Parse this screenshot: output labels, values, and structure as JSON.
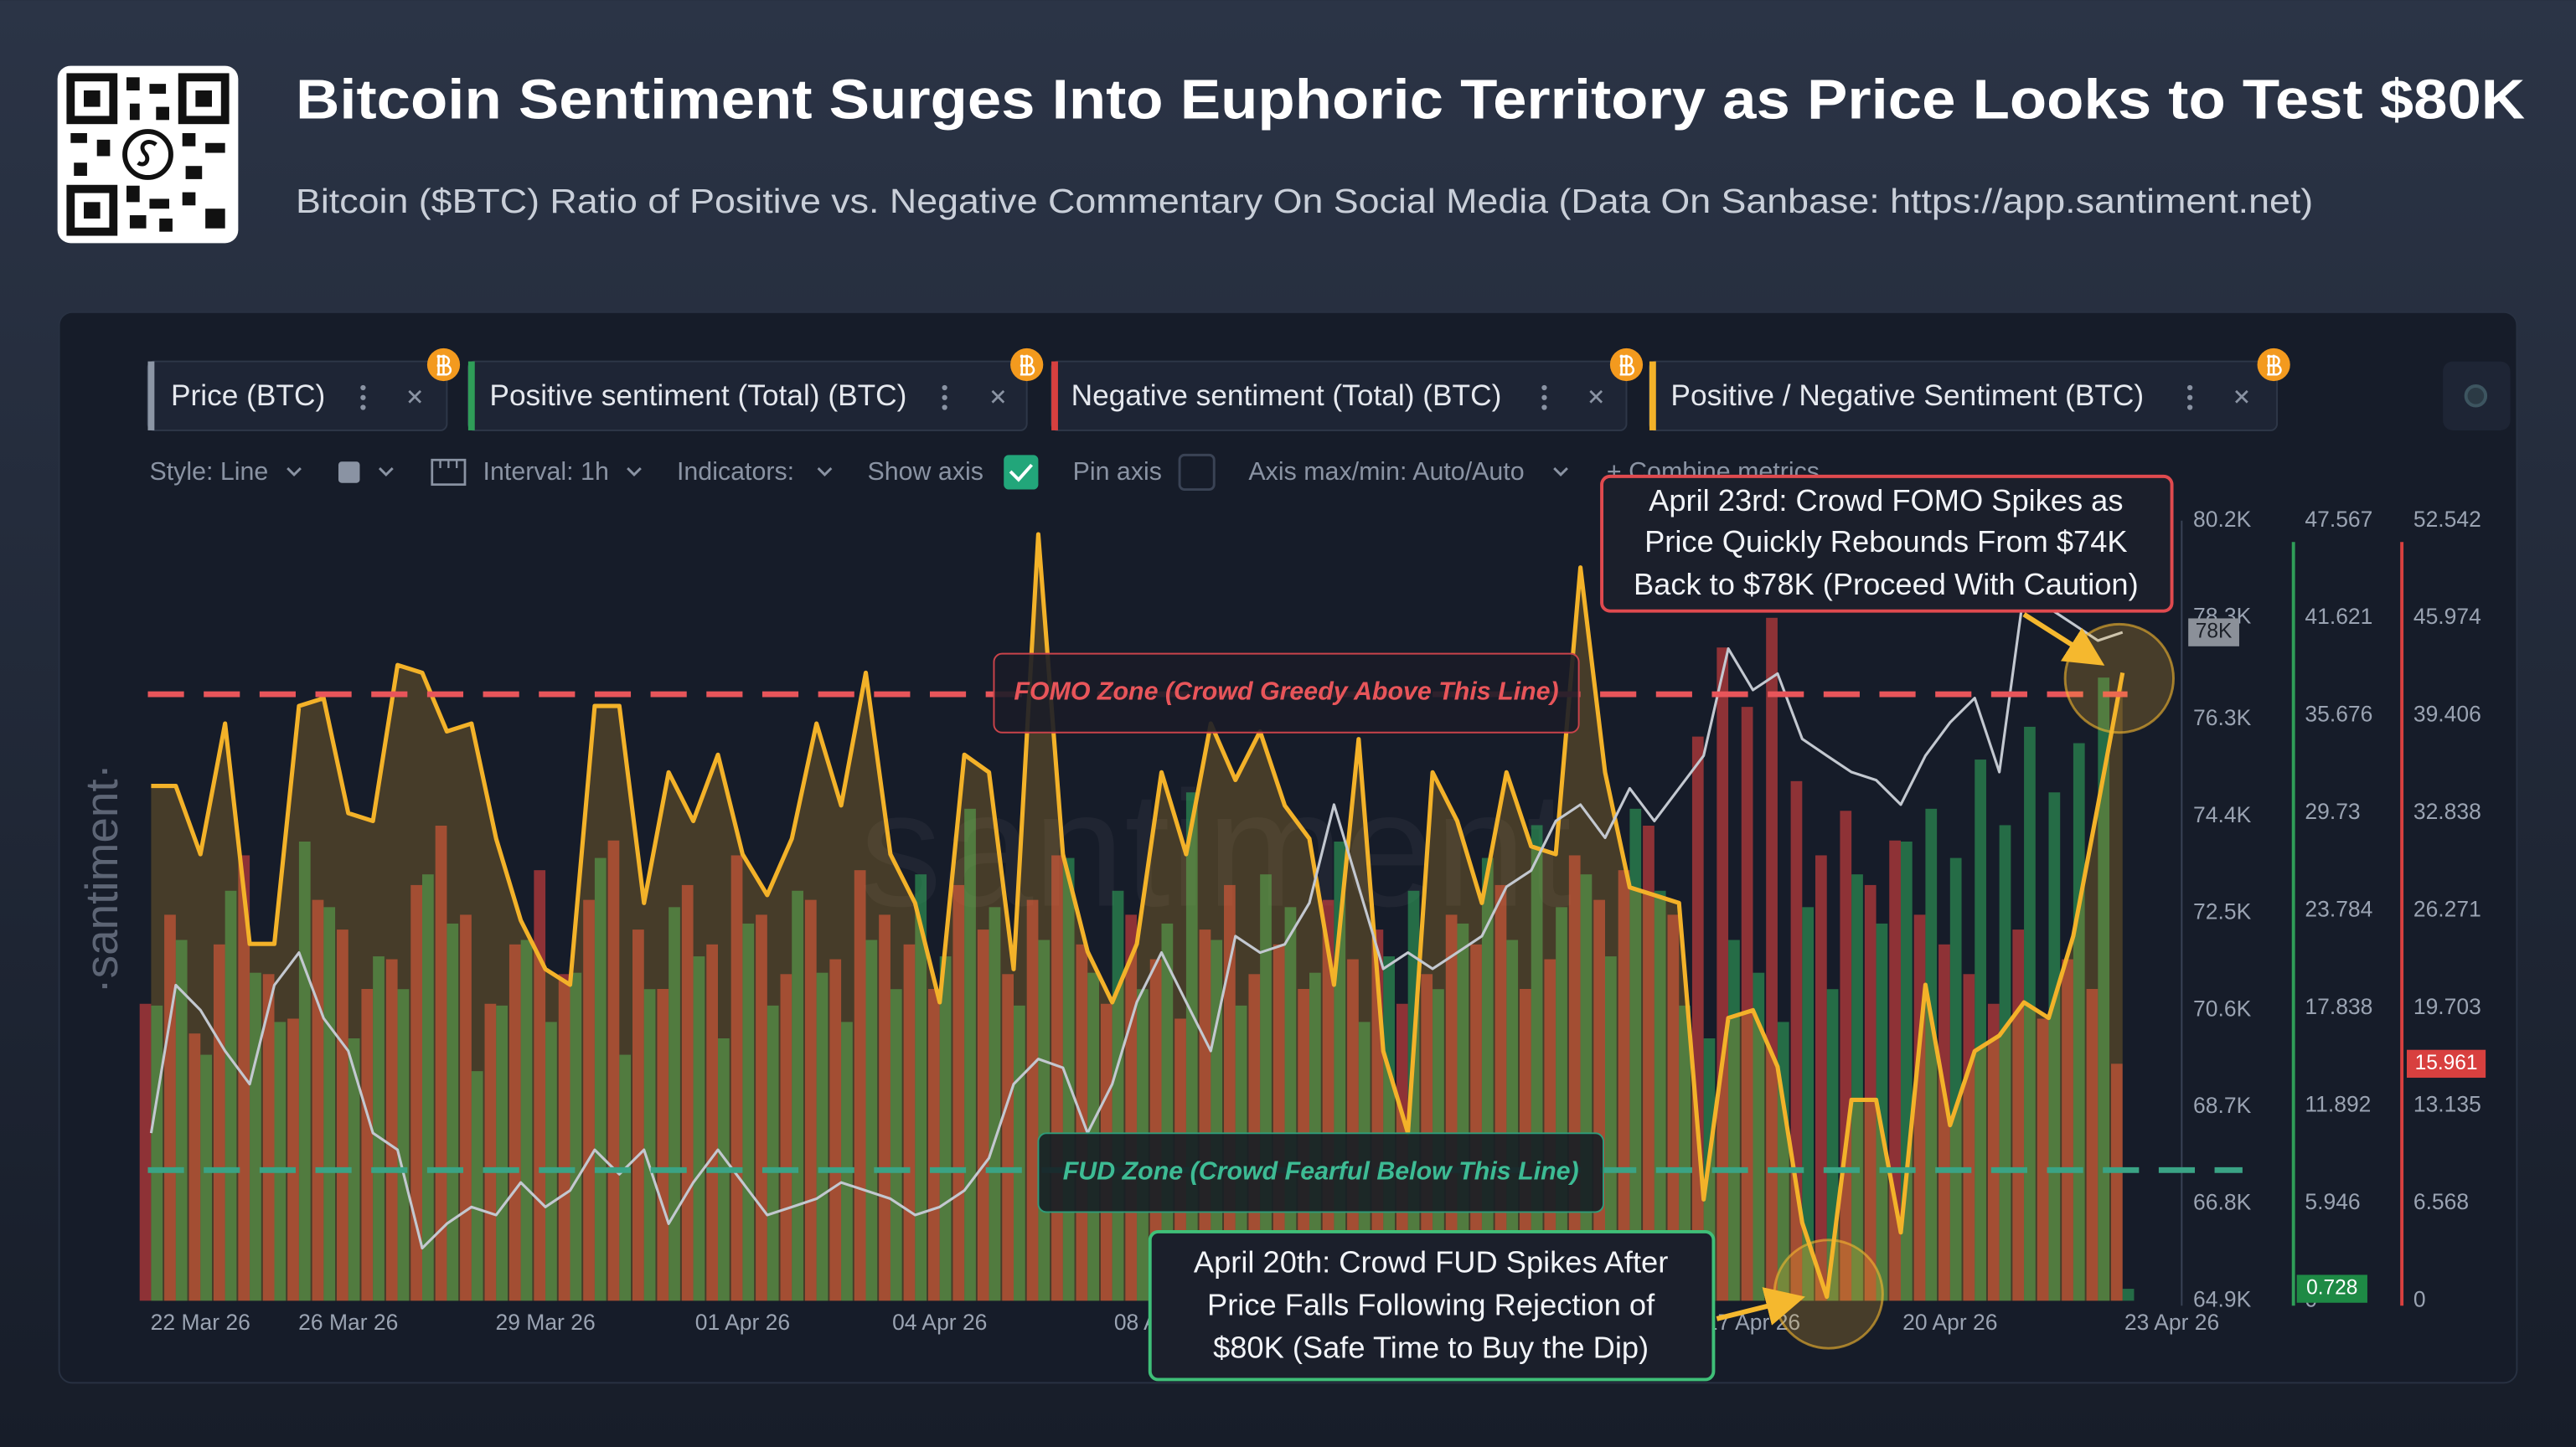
{
  "header": {
    "title": "Bitcoin Sentiment Surges Into Euphoric Territory as Price Looks to Test $80K",
    "subtitle": "Bitcoin ($BTC) Ratio of Positive vs. Negative Commentary On Social Media (Data On Sanbase: https://app.santiment.net)"
  },
  "toolbar": {
    "controls": [
      "Style: Line",
      "Interval: 1h",
      "Indicators:",
      "Show axis",
      "Pin axis",
      "Axis max/min: Auto/Auto",
      "+ Combine metrics"
    ]
  },
  "watermark": {
    "side": "·santiment·",
    "center": "santiment"
  },
  "chart_data": {
    "type": "combo",
    "xlim": [
      0,
      82
    ],
    "xticks": [
      {
        "value": 2,
        "label": "22 Mar 26"
      },
      {
        "value": 8,
        "label": "26 Mar 26"
      },
      {
        "value": 16,
        "label": "29 Mar 26"
      },
      {
        "value": 24,
        "label": "01 Apr 26"
      },
      {
        "value": 32,
        "label": "04 Apr 26"
      },
      {
        "value": 41,
        "label": "08 Apr 26"
      },
      {
        "value": 65,
        "label": "17 Apr 26"
      },
      {
        "value": 73,
        "label": "20 Apr 26"
      },
      {
        "value": 82,
        "label": "23 Apr 26"
      }
    ],
    "ylim": [
      64900,
      80200
    ],
    "yticks": [
      {
        "value": 64900,
        "label": "64.9K"
      },
      {
        "value": 66800,
        "label": "66.8K"
      },
      {
        "value": 68700,
        "label": "68.7K"
      },
      {
        "value": 70600,
        "label": "70.6K"
      },
      {
        "value": 72500,
        "label": "72.5K"
      },
      {
        "value": 74400,
        "label": "74.4K"
      },
      {
        "value": 76300,
        "label": "76.3K"
      },
      {
        "value": 78300,
        "label": "78.3K"
      },
      {
        "value": 80200,
        "label": "80.2K"
      }
    ],
    "y2lim": [
      0,
      47.567
    ],
    "y2ticks": [
      0,
      5.946,
      11.892,
      17.838,
      23.784,
      29.73,
      35.676,
      41.621,
      47.567
    ],
    "y3lim": [
      0,
      52.542
    ],
    "y3ticks": [
      0,
      6.568,
      13.135,
      19.703,
      26.271,
      32.838,
      39.406,
      45.974,
      52.542
    ],
    "y4lim": [
      0,
      4
    ],
    "grid": false,
    "series": [
      {
        "name": "Price (BTC)",
        "type": "line",
        "axis": "y",
        "color": "#c3c8d0",
        "current_label": "78K",
        "values": [
          68190,
          71090,
          70600,
          69800,
          69150,
          71090,
          71730,
          70440,
          69800,
          68190,
          67860,
          65930,
          66410,
          66740,
          66580,
          67220,
          66740,
          67060,
          67860,
          67380,
          67860,
          66410,
          67220,
          67860,
          67220,
          66580,
          66740,
          66900,
          67220,
          67060,
          66900,
          66580,
          66740,
          67060,
          67700,
          69150,
          69640,
          69470,
          68190,
          69150,
          70760,
          71730,
          70760,
          69800,
          72050,
          71730,
          71890,
          72700,
          74630,
          73020,
          71410,
          71730,
          71410,
          71730,
          72050,
          73020,
          73340,
          74310,
          74630,
          73980,
          74950,
          74310,
          74950,
          75590,
          77690,
          76880,
          77200,
          75920,
          75590,
          75270,
          75110,
          74630,
          75590,
          76240,
          76720,
          75270,
          78820,
          78490,
          78170,
          77850,
          78010
        ]
      },
      {
        "name": "Positive sentiment (Total) (BTC)",
        "type": "bar",
        "axis": "y2",
        "color": "#2f9e58",
        "values": [
          18,
          22,
          15,
          25,
          20,
          17,
          28,
          24,
          16,
          21,
          19,
          26,
          23,
          14,
          18,
          22,
          17,
          20,
          27,
          15,
          19,
          24,
          21,
          16,
          23,
          18,
          25,
          20,
          17,
          22,
          19,
          26,
          21,
          30,
          24,
          18,
          22,
          27,
          20,
          25,
          19,
          23,
          31,
          22,
          18,
          26,
          24,
          20,
          28,
          17,
          21,
          25,
          19,
          23,
          27,
          22,
          29,
          24,
          26,
          21,
          30,
          25,
          18,
          16,
          22,
          20,
          17,
          24,
          19,
          26,
          23,
          28,
          30,
          27,
          33,
          29,
          35,
          31,
          34,
          38,
          0.728
        ]
      },
      {
        "name": "Negative sentiment (Total) (BTC)",
        "type": "bar",
        "axis": "y3",
        "color": "#d8403f",
        "values": [
          20,
          26,
          18,
          24,
          30,
          22,
          19,
          27,
          25,
          21,
          23,
          28,
          32,
          26,
          20,
          24,
          29,
          22,
          27,
          31,
          25,
          21,
          28,
          24,
          30,
          26,
          22,
          27,
          23,
          29,
          26,
          24,
          21,
          28,
          25,
          22,
          27,
          30,
          24,
          20,
          26,
          23,
          19,
          25,
          28,
          22,
          24,
          21,
          27,
          23,
          25,
          20,
          22,
          26,
          24,
          28,
          21,
          23,
          30,
          27,
          29,
          32,
          26,
          38,
          44,
          40,
          46,
          35,
          30,
          33,
          28,
          31,
          26,
          24,
          22,
          20,
          25,
          19,
          23,
          21,
          15.961
        ]
      },
      {
        "name": "Positive / Negative Sentiment (BTC)",
        "type": "line",
        "axis": "y4",
        "color": "#f3b229",
        "values": [
          2.64,
          2.64,
          2.29,
          2.96,
          1.83,
          1.83,
          3.05,
          3.09,
          2.5,
          2.46,
          3.26,
          3.22,
          2.92,
          2.96,
          2.37,
          1.95,
          1.7,
          1.62,
          3.05,
          3.05,
          2.04,
          2.71,
          2.46,
          2.8,
          2.29,
          2.08,
          2.37,
          2.96,
          2.54,
          3.22,
          2.29,
          2.04,
          1.53,
          2.8,
          2.71,
          1.7,
          3.93,
          2.29,
          1.79,
          1.53,
          1.83,
          2.71,
          2.29,
          2.96,
          2.67,
          2.92,
          2.54,
          2.37,
          1.62,
          2.88,
          1.28,
          0.86,
          2.71,
          2.46,
          2.04,
          2.71,
          2.33,
          2.29,
          3.76,
          2.71,
          2.12,
          2.08,
          2.04,
          0.52,
          1.45,
          1.49,
          1.2,
          0.4,
          0.02,
          1.03,
          1.03,
          0.35,
          1.62,
          0.9,
          1.28,
          1.36,
          1.53,
          1.45,
          1.87,
          2.54,
          3.22
        ]
      }
    ],
    "reference_lines": [
      {
        "label": "FOMO Zone (Crowd Greedy Above This Line)",
        "axis": "y4",
        "value": 3.11,
        "color": "#e8555a"
      },
      {
        "label": "FUD Zone (Crowd Fearful Below This Line)",
        "axis": "y4",
        "value": 0.67,
        "color": "#3aa385"
      }
    ],
    "annotations": [
      {
        "color": "#e04a4f",
        "lines": [
          "April 23rd: Crowd FOMO Spikes as",
          "Price Quickly Rebounds From $74K",
          "Back to $78K (Proceed With Caution)"
        ]
      },
      {
        "color": "#3fbf78",
        "lines": [
          "April 20th: Crowd FUD Spikes After",
          "Price Falls Following Rejection of",
          "$80K (Safe Time to Buy the Dip)"
        ]
      }
    ]
  }
}
